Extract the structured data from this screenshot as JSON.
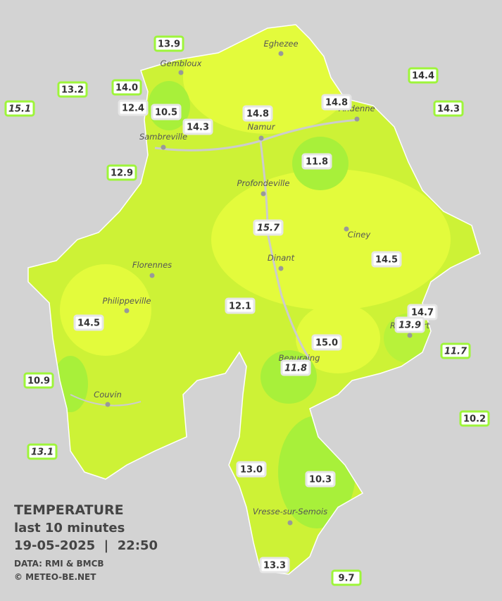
{
  "legend": {
    "title": "TEMPERATURE",
    "subtitle": "last 10 minutes",
    "datetime": "19-05-2025  |  22:50",
    "source": "DATA: RMI & BMCB",
    "credit": "© METEO-BE.NET"
  },
  "towns": [
    "Eghezee",
    "Gembloux",
    "Andenne",
    "Namur",
    "Sambreville",
    "Profondeville",
    "Ciney",
    "Florennes",
    "Dinant",
    "Philippeville",
    "Beauraing",
    "Rochefort",
    "Couvin",
    "Vresse-sur-Semois"
  ],
  "stations": [
    "13.9",
    "13.2",
    "15.1",
    "14.0",
    "12.4",
    "10.5",
    "14.3",
    "14.8",
    "14.8",
    "14.4",
    "14.3",
    "11.8",
    "12.9",
    "15.7",
    "14.5",
    "12.1",
    "14.7",
    "13.9",
    "14.5",
    "15.0",
    "11.7",
    "11.8",
    "10.9",
    "10.2",
    "13.1",
    "13.0",
    "10.3",
    "13.3",
    "9.7"
  ]
}
